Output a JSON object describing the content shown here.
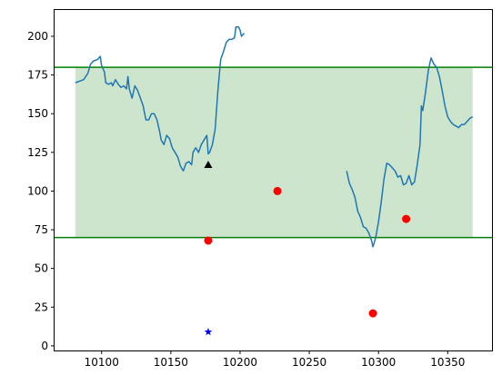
{
  "chart_data": {
    "type": "line",
    "title": "",
    "xlabel": "",
    "ylabel": "",
    "xlim": [
      10066,
      10382
    ],
    "ylim": [
      -3,
      217
    ],
    "x_ticks": [
      10100,
      10150,
      10200,
      10250,
      10300,
      10350
    ],
    "y_ticks": [
      0,
      25,
      50,
      75,
      100,
      125,
      150,
      175,
      200
    ],
    "grid": false,
    "band": {
      "x_range": [
        10081,
        10368
      ],
      "y_range": [
        70,
        180
      ],
      "color": "#cde5cd"
    },
    "hlines": [
      {
        "y": 180,
        "color": "#008000"
      },
      {
        "y": 70,
        "color": "#008000"
      }
    ],
    "series": [
      {
        "style": "line",
        "color": "#1f77b4",
        "segments": [
          [
            [
              10081,
              170
            ],
            [
              10084,
              171
            ],
            [
              10087,
              172
            ],
            [
              10090,
              176
            ],
            [
              10092,
              182
            ],
            [
              10094,
              184
            ],
            [
              10097,
              185
            ],
            [
              10099,
              187
            ],
            [
              10100,
              181
            ],
            [
              10102,
              177
            ],
            [
              10103,
              170
            ],
            [
              10105,
              169
            ],
            [
              10107,
              170
            ],
            [
              10108,
              168
            ],
            [
              10110,
              172
            ],
            [
              10112,
              169
            ],
            [
              10114,
              167
            ],
            [
              10116,
              168
            ],
            [
              10118,
              166
            ],
            [
              10119,
              174
            ],
            [
              10120,
              166
            ],
            [
              10122,
              160
            ],
            [
              10124,
              168
            ],
            [
              10126,
              165
            ],
            [
              10128,
              160
            ],
            [
              10130,
              155
            ],
            [
              10132,
              146
            ],
            [
              10134,
              146
            ],
            [
              10136,
              150
            ],
            [
              10138,
              150
            ],
            [
              10140,
              146
            ],
            [
              10142,
              138
            ],
            [
              10143,
              133
            ],
            [
              10145,
              130
            ],
            [
              10147,
              136
            ],
            [
              10149,
              134
            ],
            [
              10151,
              128
            ],
            [
              10153,
              125
            ],
            [
              10155,
              122
            ],
            [
              10157,
              116
            ],
            [
              10159,
              113
            ],
            [
              10161,
              118
            ],
            [
              10163,
              119
            ],
            [
              10165,
              117
            ],
            [
              10166,
              125
            ],
            [
              10168,
              128
            ],
            [
              10170,
              125
            ],
            [
              10172,
              130
            ],
            [
              10174,
              133
            ],
            [
              10176,
              136
            ],
            [
              10177,
              124
            ],
            [
              10178,
              125
            ],
            [
              10180,
              130
            ],
            [
              10182,
              140
            ],
            [
              10184,
              165
            ],
            [
              10186,
              185
            ],
            [
              10188,
              190
            ],
            [
              10190,
              196
            ],
            [
              10192,
              198
            ],
            [
              10194,
              198
            ],
            [
              10196,
              199
            ],
            [
              10197,
              206
            ],
            [
              10199,
              206
            ],
            [
              10200,
              204
            ],
            [
              10201,
              200
            ],
            [
              10203,
              202
            ]
          ],
          [
            [
              10277,
              113
            ],
            [
              10279,
              105
            ],
            [
              10281,
              101
            ],
            [
              10283,
              96
            ],
            [
              10285,
              87
            ],
            [
              10287,
              83
            ],
            [
              10289,
              77
            ],
            [
              10291,
              76
            ],
            [
              10293,
              73
            ],
            [
              10295,
              68
            ],
            [
              10296,
              64
            ],
            [
              10298,
              70
            ],
            [
              10300,
              80
            ],
            [
              10302,
              93
            ],
            [
              10304,
              108
            ],
            [
              10306,
              118
            ],
            [
              10308,
              117
            ],
            [
              10310,
              115
            ],
            [
              10312,
              113
            ],
            [
              10314,
              109
            ],
            [
              10316,
              110
            ],
            [
              10318,
              104
            ],
            [
              10320,
              105
            ],
            [
              10322,
              110
            ],
            [
              10324,
              104
            ],
            [
              10326,
              106
            ],
            [
              10328,
              117
            ],
            [
              10330,
              130
            ],
            [
              10331,
              155
            ],
            [
              10332,
              152
            ],
            [
              10334,
              164
            ],
            [
              10336,
              178
            ],
            [
              10338,
              186
            ],
            [
              10340,
              182
            ],
            [
              10342,
              180
            ],
            [
              10344,
              174
            ],
            [
              10346,
              165
            ],
            [
              10348,
              155
            ],
            [
              10350,
              148
            ],
            [
              10352,
              145
            ],
            [
              10354,
              143
            ],
            [
              10356,
              142
            ],
            [
              10358,
              141
            ],
            [
              10360,
              143
            ],
            [
              10362,
              143
            ],
            [
              10364,
              145
            ],
            [
              10366,
              147
            ],
            [
              10368,
              148
            ]
          ]
        ]
      },
      {
        "style": "scatter",
        "marker": "circle",
        "color": "#ff0000",
        "points": [
          [
            10177,
            68
          ],
          [
            10227,
            100
          ],
          [
            10296,
            21
          ],
          [
            10320,
            82
          ]
        ]
      },
      {
        "style": "scatter",
        "marker": "triangle",
        "color": "#000000",
        "points": [
          [
            10177,
            117
          ]
        ]
      },
      {
        "style": "scatter",
        "marker": "star",
        "color": "#0000ff",
        "points": [
          [
            10177,
            9
          ]
        ]
      }
    ]
  }
}
